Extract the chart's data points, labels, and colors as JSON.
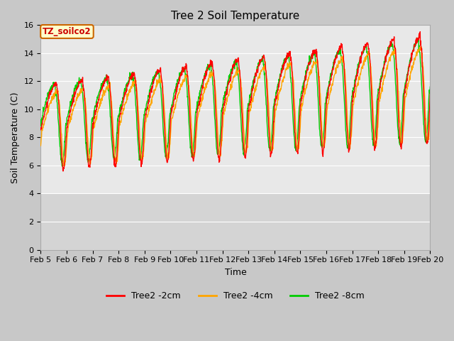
{
  "title": "Tree 2 Soil Temperature",
  "xlabel": "Time",
  "ylabel": "Soil Temperature (C)",
  "legend_label": "TZ_soilco2",
  "series_labels": [
    "Tree2 -2cm",
    "Tree2 -4cm",
    "Tree2 -8cm"
  ],
  "series_colors": [
    "#ff0000",
    "#ffa500",
    "#00cc00"
  ],
  "ylim": [
    0,
    16
  ],
  "yticks": [
    0,
    2,
    4,
    6,
    8,
    10,
    12,
    14,
    16
  ],
  "xtick_labels": [
    "Feb 5",
    "Feb 6",
    "Feb 7",
    "Feb 8",
    "Feb 9",
    "Feb 10",
    "Feb 11",
    "Feb 12",
    "Feb 13",
    "Feb 14",
    "Feb 15",
    "Feb 16",
    "Feb 17",
    "Feb 18",
    "Feb 19",
    "Feb 20"
  ],
  "upper_bg_color": "#e8e8e8",
  "lower_bg_color": "#d4d4d4",
  "fig_bg_color": "#c8c8c8",
  "title_fontsize": 11,
  "axis_label_fontsize": 9,
  "tick_fontsize": 8,
  "n_days": 15,
  "pts_per_day": 96
}
